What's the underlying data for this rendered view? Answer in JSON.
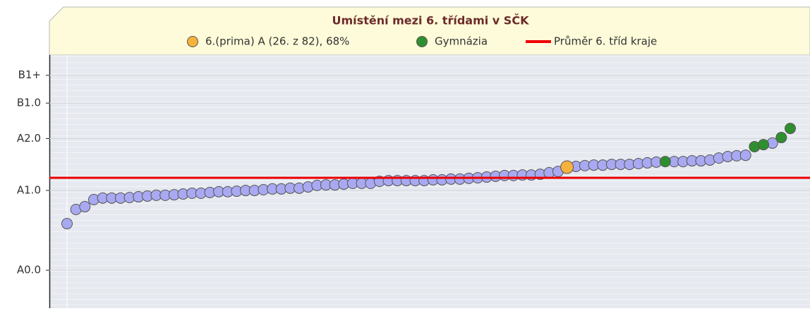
{
  "chart_data": {
    "type": "dots",
    "title": "Umístění mezi 6. třídami v SČK",
    "ylim": [
      0,
      100
    ],
    "yticks": [
      {
        "value": 15,
        "label": "A0.0"
      },
      {
        "value": 46.5,
        "label": "A1.0"
      },
      {
        "value": 67,
        "label": "A2.0"
      },
      {
        "value": 81,
        "label": "B1.0"
      },
      {
        "value": 92,
        "label": "B1+"
      }
    ],
    "grid": true,
    "legend": [
      {
        "name": "6.(prima) A (26. z 82), 68%",
        "color": "#f7b23b",
        "marker": "dot"
      },
      {
        "name": "Gymnázia",
        "color": "#2f8f2f",
        "marker": "dot"
      },
      {
        "name": "Průměr 6. tříd kraje",
        "color": "#ee0000",
        "marker": "line"
      }
    ],
    "average": {
      "value": 51.5,
      "color": "#ee0000"
    },
    "values": [
      33.4,
      39.0,
      40.1,
      42.9,
      43.5,
      43.5,
      43.5,
      43.7,
      44.0,
      44.3,
      44.6,
      44.6,
      44.8,
      45.1,
      45.4,
      45.4,
      45.7,
      46.0,
      46.0,
      46.2,
      46.5,
      46.5,
      46.8,
      47.1,
      47.1,
      47.4,
      47.4,
      47.9,
      48.5,
      48.7,
      48.7,
      49.0,
      49.3,
      49.3,
      49.3,
      50.1,
      50.4,
      50.4,
      50.4,
      50.4,
      50.4,
      50.7,
      50.7,
      51.0,
      51.0,
      51.3,
      51.5,
      51.8,
      52.1,
      52.4,
      52.4,
      52.6,
      52.6,
      52.9,
      53.5,
      54.0,
      55.7,
      56.0,
      56.3,
      56.5,
      56.5,
      56.8,
      56.8,
      56.8,
      57.1,
      57.4,
      57.7,
      57.9,
      57.9,
      57.9,
      58.2,
      58.2,
      58.5,
      59.3,
      59.9,
      60.2,
      60.4,
      63.8,
      64.6,
      65.2,
      67.4,
      71.0
    ],
    "point_colors": [
      "#a9a9f2",
      "#a9a9f2",
      "#a9a9f2",
      "#a9a9f2",
      "#a9a9f2",
      "#a9a9f2",
      "#a9a9f2",
      "#a9a9f2",
      "#a9a9f2",
      "#a9a9f2",
      "#a9a9f2",
      "#a9a9f2",
      "#a9a9f2",
      "#a9a9f2",
      "#a9a9f2",
      "#a9a9f2",
      "#a9a9f2",
      "#a9a9f2",
      "#a9a9f2",
      "#a9a9f2",
      "#a9a9f2",
      "#a9a9f2",
      "#a9a9f2",
      "#a9a9f2",
      "#a9a9f2",
      "#a9a9f2",
      "#a9a9f2",
      "#a9a9f2",
      "#a9a9f2",
      "#a9a9f2",
      "#a9a9f2",
      "#a9a9f2",
      "#a9a9f2",
      "#a9a9f2",
      "#a9a9f2",
      "#a9a9f2",
      "#a9a9f2",
      "#a9a9f2",
      "#a9a9f2",
      "#a9a9f2",
      "#a9a9f2",
      "#a9a9f2",
      "#a9a9f2",
      "#a9a9f2",
      "#a9a9f2",
      "#a9a9f2",
      "#a9a9f2",
      "#a9a9f2",
      "#a9a9f2",
      "#a9a9f2",
      "#a9a9f2",
      "#a9a9f2",
      "#a9a9f2",
      "#a9a9f2",
      "#a9a9f2",
      "#a9a9f2",
      "#f7b23b",
      "#a9a9f2",
      "#a9a9f2",
      "#a9a9f2",
      "#a9a9f2",
      "#a9a9f2",
      "#a9a9f2",
      "#a9a9f2",
      "#a9a9f2",
      "#a9a9f2",
      "#a9a9f2",
      "#2f8f2f",
      "#a9a9f2",
      "#a9a9f2",
      "#a9a9f2",
      "#a9a9f2",
      "#a9a9f2",
      "#a9a9f2",
      "#a9a9f2",
      "#a9a9f2",
      "#a9a9f2",
      "#2f8f2f",
      "#2f8f2f",
      "#a9a9f2",
      "#2f8f2f",
      "#2f8f2f"
    ]
  }
}
